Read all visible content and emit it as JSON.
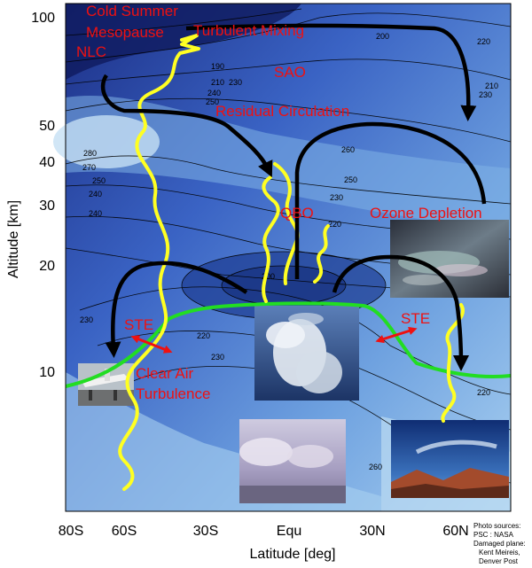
{
  "y_axis": {
    "label": "Altitude [km]",
    "scale": "log",
    "ticks": [
      "100",
      "50",
      "40",
      "30",
      "20",
      "10"
    ]
  },
  "x_axis": {
    "label": "Latitude [deg]",
    "ticks": [
      "80S",
      "60S",
      "30S",
      "Equ",
      "30N",
      "60N"
    ]
  },
  "annotations": {
    "cold_summer": "Cold Summer",
    "mesopause": "Mesopause",
    "nlc": "NLC",
    "turbulent_mixing": "Turbulent Mixing",
    "sao": "SAO",
    "residual_circulation": "Residual Circulation",
    "qbo": "QBO",
    "ozone_depletion": "Ozone Depletion",
    "ste_left": "STE",
    "ste_right": "STE",
    "clear_air": "Clear Air",
    "turbulence": "Turbulence"
  },
  "contour_labels": [
    "190",
    "200",
    "210",
    "220",
    "230",
    "240",
    "250",
    "260",
    "270",
    "280"
  ],
  "credits": [
    "Photo sources:",
    "PSC : NASA",
    "Damaged plane:",
    "Kent Meireis,",
    "Denver Post"
  ],
  "colors": {
    "background_dark": "#1c2f86",
    "background_light": "#c6e0f4",
    "tropopause": "#22dd22",
    "turbulence_waves": "#ffff22",
    "circulation_arrows": "#000000",
    "labels": "#ee1111",
    "ste_arrows": "#ee1111"
  },
  "photos": [
    "nacreous-clouds-photo",
    "cumulonimbus-photo",
    "damaged-plane-photo",
    "cumulus-clouds-photo",
    "cirrus-sky-photo"
  ]
}
